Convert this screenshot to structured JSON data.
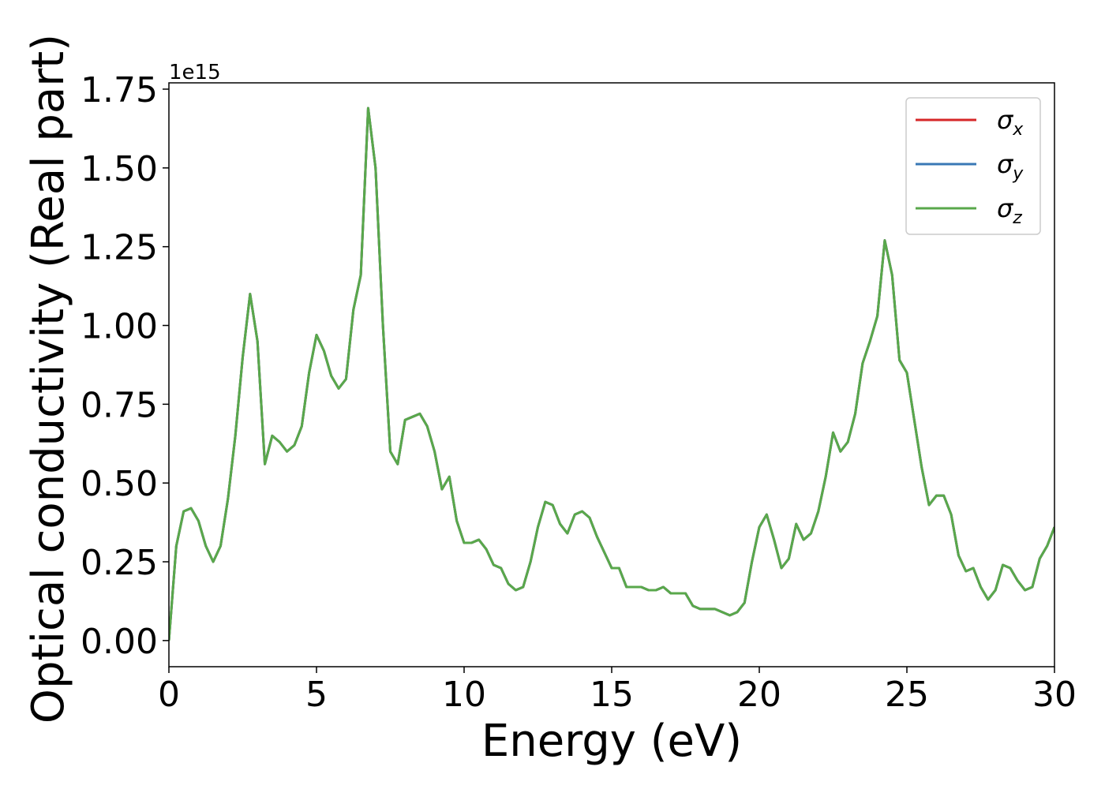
{
  "chart_data": {
    "type": "line",
    "xlabel": "Energy (eV)",
    "ylabel": "Optical conductivity (Real part)",
    "offset_label": "1e15",
    "xlim": [
      0,
      30
    ],
    "ylim": [
      -0.083,
      1.77
    ],
    "xticks": [
      0,
      5,
      10,
      15,
      20,
      25,
      30
    ],
    "yticks": [
      {
        "value": 0,
        "label": "0.00"
      },
      0.25,
      {
        "value": 0.5,
        "label": "0.50"
      },
      0.75,
      {
        "value": 1,
        "label": "1.00"
      },
      1.25,
      {
        "value": 1.5,
        "label": "1.50"
      },
      1.75
    ],
    "legend": "upper right",
    "x": [
      0,
      0.25,
      0.5,
      0.75,
      1,
      1.25,
      1.5,
      1.75,
      2,
      2.25,
      2.5,
      2.75,
      3,
      3.25,
      3.5,
      3.75,
      4,
      4.25,
      4.5,
      4.75,
      5,
      5.25,
      5.5,
      5.75,
      6,
      6.25,
      6.5,
      6.75,
      7,
      7.25,
      7.5,
      7.75,
      8,
      8.25,
      8.5,
      8.75,
      9,
      9.25,
      9.5,
      9.75,
      10,
      10.25,
      10.5,
      10.75,
      11,
      11.25,
      11.5,
      11.75,
      12,
      12.25,
      12.5,
      12.75,
      13,
      13.25,
      13.5,
      13.75,
      14,
      14.25,
      14.5,
      14.75,
      15,
      15.25,
      15.5,
      15.75,
      16,
      16.25,
      16.5,
      16.75,
      17,
      17.25,
      17.5,
      17.75,
      18,
      18.25,
      18.5,
      18.75,
      19,
      19.25,
      19.5,
      19.75,
      20,
      20.25,
      20.5,
      20.75,
      21,
      21.25,
      21.5,
      21.75,
      22,
      22.25,
      22.5,
      22.75,
      23,
      23.25,
      23.5,
      23.75,
      24,
      24.25,
      24.5,
      24.75,
      25,
      25.25,
      25.5,
      25.75,
      26,
      26.25,
      26.5,
      26.75,
      27,
      27.25,
      27.5,
      27.75,
      28,
      28.25,
      28.5,
      28.75,
      29,
      29.25,
      29.5,
      29.75,
      30
    ],
    "series": [
      {
        "name": "σx",
        "color": "#d62728",
        "values": [
          0,
          0.3,
          0.41,
          0.42,
          0.38,
          0.3,
          0.25,
          0.3,
          0.45,
          0.65,
          0.9,
          1.1,
          0.95,
          0.56,
          0.65,
          0.63,
          0.6,
          0.62,
          0.68,
          0.85,
          0.97,
          0.92,
          0.84,
          0.8,
          0.83,
          1.05,
          1.16,
          1.69,
          1.5,
          1,
          0.6,
          0.56,
          0.7,
          0.71,
          0.72,
          0.68,
          0.6,
          0.48,
          0.52,
          0.38,
          0.31,
          0.31,
          0.32,
          0.29,
          0.24,
          0.23,
          0.18,
          0.16,
          0.17,
          0.25,
          0.36,
          0.44,
          0.43,
          0.37,
          0.34,
          0.4,
          0.41,
          0.39,
          0.33,
          0.28,
          0.23,
          0.23,
          0.17,
          0.17,
          0.17,
          0.16,
          0.16,
          0.17,
          0.15,
          0.15,
          0.15,
          0.11,
          0.1,
          0.1,
          0.1,
          0.09,
          0.08,
          0.09,
          0.12,
          0.25,
          0.36,
          0.4,
          0.32,
          0.23,
          0.26,
          0.37,
          0.32,
          0.34,
          0.41,
          0.52,
          0.66,
          0.6,
          0.63,
          0.72,
          0.88,
          0.95,
          1.03,
          1.27,
          1.16,
          0.89,
          0.85,
          0.7,
          0.55,
          0.43,
          0.46,
          0.46,
          0.4,
          0.27,
          0.22,
          0.23,
          0.17,
          0.13,
          0.16,
          0.24,
          0.23,
          0.19,
          0.16,
          0.17,
          0.26,
          0.3,
          0.36
        ]
      },
      {
        "name": "σy",
        "color": "#3a78b5",
        "values": [
          0,
          0.3,
          0.41,
          0.42,
          0.38,
          0.3,
          0.25,
          0.3,
          0.45,
          0.65,
          0.9,
          1.1,
          0.95,
          0.56,
          0.65,
          0.63,
          0.6,
          0.62,
          0.68,
          0.85,
          0.97,
          0.92,
          0.84,
          0.8,
          0.83,
          1.05,
          1.16,
          1.69,
          1.5,
          1,
          0.6,
          0.56,
          0.7,
          0.71,
          0.72,
          0.68,
          0.6,
          0.48,
          0.52,
          0.38,
          0.31,
          0.31,
          0.32,
          0.29,
          0.24,
          0.23,
          0.18,
          0.16,
          0.17,
          0.25,
          0.36,
          0.44,
          0.43,
          0.37,
          0.34,
          0.4,
          0.41,
          0.39,
          0.33,
          0.28,
          0.23,
          0.23,
          0.17,
          0.17,
          0.17,
          0.16,
          0.16,
          0.17,
          0.15,
          0.15,
          0.15,
          0.11,
          0.1,
          0.1,
          0.1,
          0.09,
          0.08,
          0.09,
          0.12,
          0.25,
          0.36,
          0.4,
          0.32,
          0.23,
          0.26,
          0.37,
          0.32,
          0.34,
          0.41,
          0.52,
          0.66,
          0.6,
          0.63,
          0.72,
          0.88,
          0.95,
          1.03,
          1.27,
          1.16,
          0.89,
          0.85,
          0.7,
          0.55,
          0.43,
          0.46,
          0.46,
          0.4,
          0.27,
          0.22,
          0.23,
          0.17,
          0.13,
          0.16,
          0.24,
          0.23,
          0.19,
          0.16,
          0.17,
          0.26,
          0.3,
          0.36
        ]
      },
      {
        "name": "σz",
        "color": "#59a84b",
        "values": [
          0,
          0.3,
          0.41,
          0.42,
          0.38,
          0.3,
          0.25,
          0.3,
          0.45,
          0.65,
          0.9,
          1.1,
          0.95,
          0.56,
          0.65,
          0.63,
          0.6,
          0.62,
          0.68,
          0.85,
          0.97,
          0.92,
          0.84,
          0.8,
          0.83,
          1.05,
          1.16,
          1.69,
          1.5,
          1,
          0.6,
          0.56,
          0.7,
          0.71,
          0.72,
          0.68,
          0.6,
          0.48,
          0.52,
          0.38,
          0.31,
          0.31,
          0.32,
          0.29,
          0.24,
          0.23,
          0.18,
          0.16,
          0.17,
          0.25,
          0.36,
          0.44,
          0.43,
          0.37,
          0.34,
          0.4,
          0.41,
          0.39,
          0.33,
          0.28,
          0.23,
          0.23,
          0.17,
          0.17,
          0.17,
          0.16,
          0.16,
          0.17,
          0.15,
          0.15,
          0.15,
          0.11,
          0.1,
          0.1,
          0.1,
          0.09,
          0.08,
          0.09,
          0.12,
          0.25,
          0.36,
          0.4,
          0.32,
          0.23,
          0.26,
          0.37,
          0.32,
          0.34,
          0.41,
          0.52,
          0.66,
          0.6,
          0.63,
          0.72,
          0.88,
          0.95,
          1.03,
          1.27,
          1.16,
          0.89,
          0.85,
          0.7,
          0.55,
          0.43,
          0.46,
          0.46,
          0.4,
          0.27,
          0.22,
          0.23,
          0.17,
          0.13,
          0.16,
          0.24,
          0.23,
          0.19,
          0.16,
          0.17,
          0.26,
          0.3,
          0.36
        ]
      }
    ]
  }
}
